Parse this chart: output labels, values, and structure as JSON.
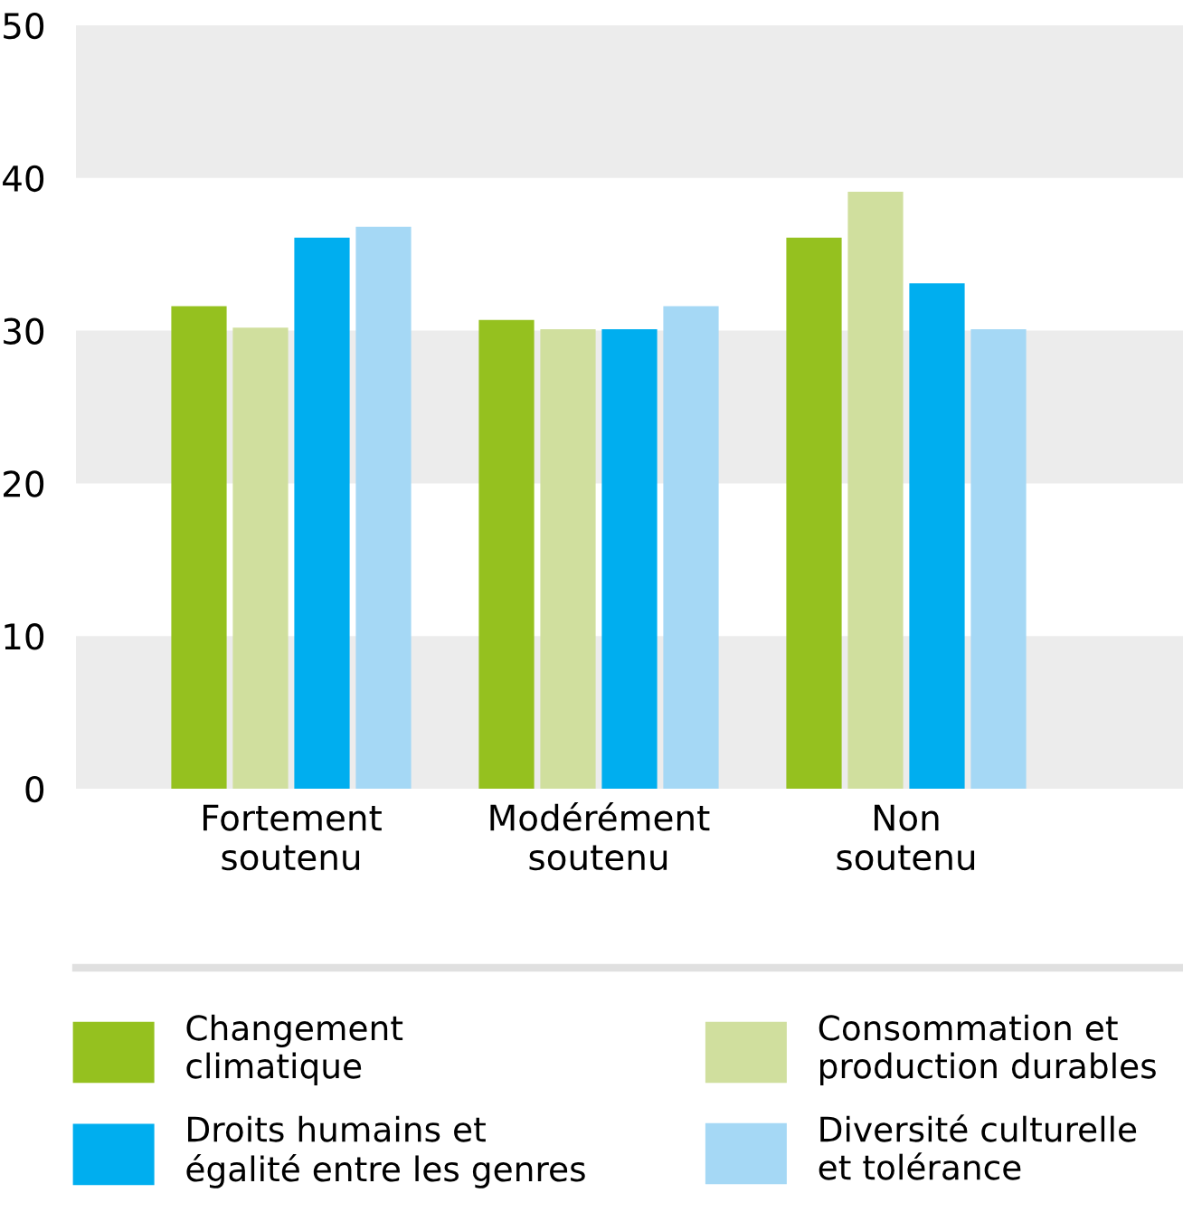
{
  "chart_data": {
    "type": "bar",
    "categories": [
      "Fortement\nsoutenu",
      "Modérément\nsoutenu",
      "Non\nsoutenu"
    ],
    "series": [
      {
        "name": "Changement\nclimatique",
        "color": "#95c11f",
        "values": [
          31.6,
          30.7,
          36.1
        ]
      },
      {
        "name": "Consommation et\nproduction durables",
        "color": "#d0df9e",
        "values": [
          30.2,
          30.1,
          39.1
        ]
      },
      {
        "name": "Droits humains et\négalité entre les genres",
        "color": "#00aeef",
        "values": [
          36.1,
          30.1,
          33.1
        ]
      },
      {
        "name": "Diversité culturelle\net tolérance",
        "color": "#a5d8f5",
        "values": [
          36.8,
          31.6,
          30.1
        ]
      }
    ],
    "ylim": [
      0,
      50
    ],
    "yticks": [
      0,
      10,
      20,
      30,
      40,
      50
    ],
    "bands": [
      {
        "axis": "y",
        "from": 0,
        "to": 10,
        "color": "#ececec"
      },
      {
        "axis": "y",
        "from": 20,
        "to": 30,
        "color": "#ececec"
      },
      {
        "axis": "y",
        "from": 40,
        "to": 50,
        "color": "#ececec"
      }
    ],
    "grid": false,
    "legend": "bottom"
  }
}
